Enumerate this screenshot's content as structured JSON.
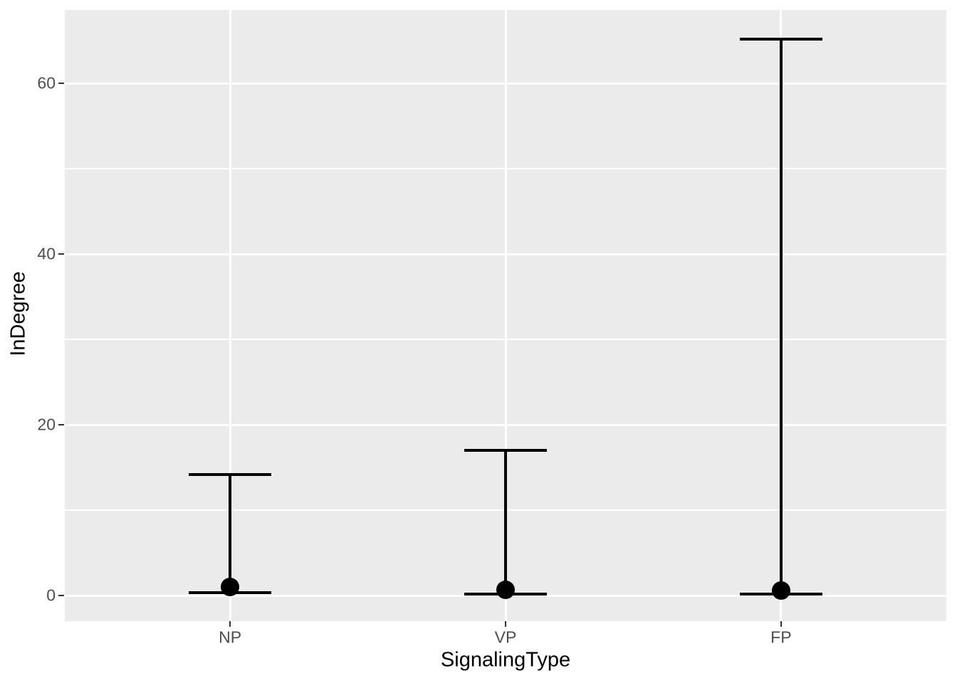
{
  "chart_data": {
    "type": "pointrange",
    "title": "",
    "xlabel": "SignalingType",
    "ylabel": "InDegree",
    "categories": [
      "NP",
      "VP",
      "FP"
    ],
    "points": [
      {
        "category": "NP",
        "y": 1.0,
        "ymin": 0.3,
        "ymax": 14.2
      },
      {
        "category": "VP",
        "y": 0.7,
        "ymin": 0.2,
        "ymax": 17.0
      },
      {
        "category": "FP",
        "y": 0.6,
        "ymin": 0.2,
        "ymax": 65.2
      }
    ],
    "y_ticks": [
      0,
      20,
      40,
      60
    ],
    "y_minor_gridlines": [
      10,
      30,
      50
    ],
    "ylim": [
      -3,
      68.6
    ],
    "grid": true,
    "legend": "none",
    "theme": {
      "panel_background": "#EBEBEB",
      "grid_color": "#FFFFFF",
      "axis_text_color": "#4D4D4D",
      "axis_title_color": "#000000",
      "tick_color": "#333333",
      "data_color": "#000000"
    }
  }
}
